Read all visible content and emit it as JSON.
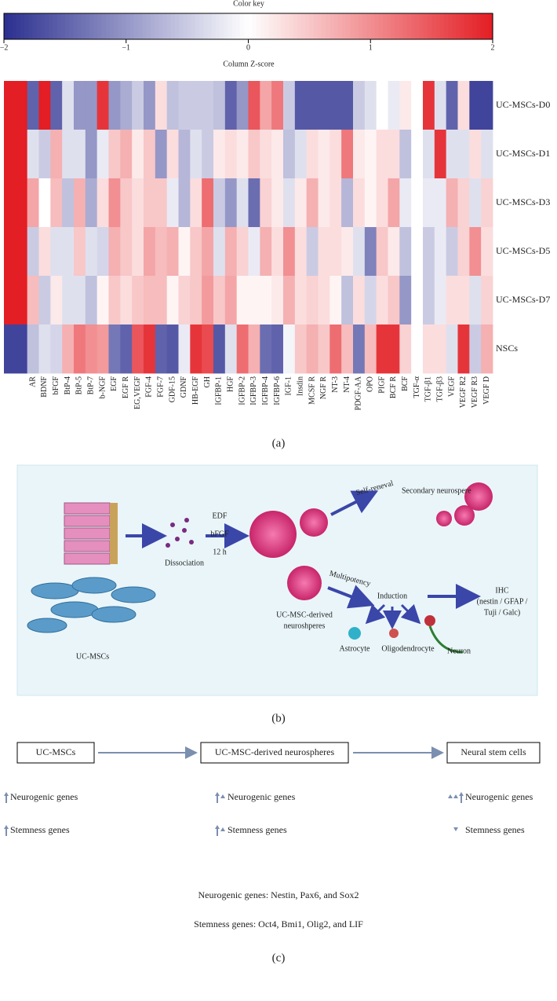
{
  "chart_data": {
    "type": "heatmap",
    "title": "Color key",
    "colorbar_label": "Column Z-score",
    "zlim": [
      -2,
      2
    ],
    "zticks": [
      {
        "value": -2,
        "label": "−2"
      },
      {
        "value": -1,
        "label": "−1"
      },
      0,
      1,
      2
    ],
    "colors": [
      "#2b2f8f",
      "#ffffff",
      "#e31e24"
    ],
    "rows": [
      "UC-MSCs-D0",
      "UC-MSCs-D1",
      "UC-MSCs-D3",
      "UC-MSCs-D5",
      "UC-MSCs-D7",
      "NSCs"
    ],
    "categories": [
      null,
      null,
      "AR",
      "BDNF",
      "bFGF",
      "BtP-4",
      "BtP-5",
      "BtP-7",
      "b-NGF",
      "EGF",
      "EGF R",
      "EG,VEGF",
      "FGF-4",
      "FGF-7",
      "GDF-15",
      "GDNF",
      "HB-EGF",
      "GH",
      "IGFBP-1",
      "HGF",
      "IGFBP-2",
      "IGFBP-3",
      "IGFBP-4",
      "IGFBP-6",
      "IGF-1",
      "Insdin",
      "MCSF R",
      "NGF R",
      "NT-3",
      "NT-4",
      "PDGF-AA",
      "OPO",
      "PIGF",
      "BCF R",
      "BCF",
      "TGF-α",
      "TGF-β1",
      "TGF-β3",
      "VEGF",
      "VEGF R2",
      "VEGF R3",
      "VEGF D"
    ],
    "values": [
      [
        2,
        2,
        -1.5,
        2,
        -1.5,
        -0.3,
        -1,
        -1,
        1.8,
        -1,
        -0.8,
        -0.5,
        -1,
        0.3,
        -0.6,
        -0.5,
        -0.5,
        -0.5,
        -0.6,
        -1.5,
        -1,
        1.5,
        0.8,
        1.2,
        -0.5,
        -1.6,
        -1.6,
        -1.6,
        -1.6,
        -1.6,
        -0.5,
        -0.3,
        0,
        -0.2,
        0.2,
        0,
        1.8,
        -0.3,
        -1.5,
        0.3,
        -1.8,
        -1.8
      ],
      [
        2,
        2,
        -0.3,
        -0.5,
        0.7,
        -0.3,
        -0.3,
        -1,
        -0.2,
        0.5,
        0.7,
        0.2,
        0.5,
        -1,
        0.3,
        -0.7,
        -0.3,
        -0.5,
        0.2,
        0.3,
        0.2,
        0.5,
        0.3,
        0.2,
        -0.6,
        -0.3,
        0.3,
        0.2,
        0.3,
        1.2,
        0.2,
        0.1,
        0.3,
        0.3,
        -0.6,
        0,
        -0.3,
        1.8,
        -0.3,
        -0.3,
        0.3,
        -0.3
      ],
      [
        2,
        2,
        0.8,
        0,
        0.6,
        -0.6,
        0.7,
        -0.8,
        0.3,
        1,
        0.5,
        0.3,
        0.5,
        0.5,
        -0.2,
        -0.7,
        0.3,
        1.3,
        -0.5,
        -1,
        -0.3,
        -1.4,
        0.4,
        0.2,
        -0.3,
        0.2,
        0.7,
        0.2,
        0.3,
        -0.7,
        0.3,
        0.1,
        0.3,
        0.8,
        -0.2,
        0,
        -0.2,
        -0.2,
        0.7,
        0.4,
        -0.3,
        0.4
      ],
      [
        2,
        2,
        -0.5,
        0.3,
        -0.3,
        -0.3,
        0.5,
        -0.3,
        -0.4,
        0.7,
        0.5,
        0.3,
        0.8,
        0.6,
        0.7,
        0.1,
        0.5,
        0.8,
        -0.3,
        0.7,
        0.4,
        -0.2,
        0.7,
        0.3,
        1,
        0.3,
        -0.5,
        0.3,
        0.3,
        0.2,
        -0.3,
        -1.2,
        0.5,
        0.2,
        -0.6,
        0,
        -0.5,
        -0.2,
        -0.5,
        0.4,
        1,
        0.3
      ],
      [
        2,
        2,
        0.6,
        -0.5,
        0.2,
        -0.3,
        -0.3,
        -0.6,
        0.1,
        0.5,
        0.3,
        0.5,
        0.6,
        0.6,
        0.1,
        0.4,
        0.5,
        0.9,
        0.5,
        0.8,
        0.1,
        0.1,
        0.1,
        0.2,
        0.7,
        0.3,
        0.4,
        0.3,
        0.1,
        -0.6,
        0.3,
        -0.4,
        0.3,
        0.5,
        -1,
        0,
        -0.5,
        -0.2,
        0.3,
        0.3,
        -0.3,
        0.4
      ],
      [
        -1.8,
        -1.8,
        -0.6,
        -0.3,
        -0.4,
        0.7,
        1.2,
        1,
        0.9,
        -1.3,
        -1.5,
        1.5,
        1.8,
        -1.5,
        -1.6,
        -0.2,
        1.8,
        1.6,
        -1.6,
        -0.3,
        1.3,
        0.7,
        -1.4,
        -1.5,
        -0.1,
        0.5,
        0.7,
        0.5,
        1.3,
        0.6,
        -1.3,
        0.6,
        1.8,
        1.8,
        0.4,
        0,
        0.3,
        0.3,
        -0.3,
        1.8,
        -0.5,
        0.7
      ]
    ],
    "caption": "(a)"
  },
  "diagram": {
    "self_renewal": "Self-reneval",
    "secondary": "Secondary neurospere",
    "medium": [
      "EDF",
      "bFGF",
      "12 h"
    ],
    "dissociation": "Dissociation",
    "multipotency": "Multipotency",
    "induction": "Induction",
    "ihc": "IHC",
    "ihc_markers": [
      "(nestin / GFAP /",
      "Tuji / Galc)"
    ],
    "neurospheres": [
      "UC-MSC-derived",
      "neuroshperes"
    ],
    "uc_mscs": "UC-MSCs",
    "astrocyte": "Astrocyte",
    "oligodendrocyte": "Oligodendrocyte",
    "neuron": "Neuron",
    "caption": "(b)"
  },
  "flow": {
    "stages": [
      "UC-MSCs",
      "UC-MSC-derived neurospheres",
      "Neural stem cells"
    ],
    "neurogenic": "Neurogenic genes",
    "stemness": "Stemness genes",
    "notes": [
      "Neurogenic genes: Nestin, Pax6, and Sox2",
      "Stemness genes: Oct4, Bmi1, Olig2, and LIF"
    ],
    "caption": "(c)"
  }
}
